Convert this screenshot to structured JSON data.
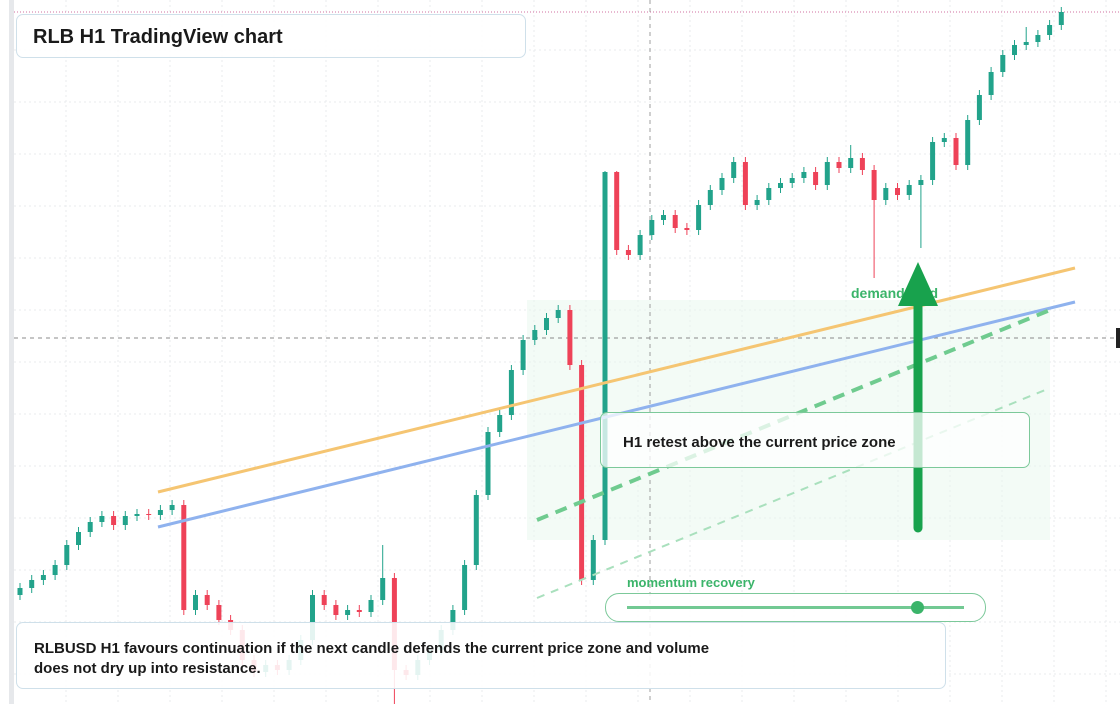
{
  "chart_data": {
    "type": "candlestick",
    "title": "RLB H1 TradingView chart",
    "annotations": [
      "demand hold",
      "H1 retest above the current price zone",
      "momentum recovery",
      "RLBUSD H1 favours continuation if the next candle defends the current price zone and volume does not dry up into resistance."
    ],
    "up_color": "#22a38b",
    "down_color": "#ee4258",
    "ylim": [
      0,
      70.4
    ],
    "candles": [
      [
        10.9,
        12.1,
        10.4,
        11.6
      ],
      [
        11.6,
        12.9,
        11.1,
        12.4
      ],
      [
        12.4,
        13.4,
        11.9,
        12.9
      ],
      [
        12.9,
        14.4,
        12.4,
        13.9
      ],
      [
        13.9,
        16.4,
        13.4,
        15.9
      ],
      [
        15.9,
        17.7,
        15.4,
        17.2
      ],
      [
        17.2,
        18.7,
        16.7,
        18.2
      ],
      [
        18.2,
        19.3,
        17.7,
        18.8
      ],
      [
        18.8,
        19.3,
        17.4,
        17.9
      ],
      [
        17.9,
        19.3,
        17.4,
        18.8
      ],
      [
        18.8,
        19.5,
        18.3,
        19
      ],
      [
        19,
        19.5,
        18.4,
        18.9
      ],
      [
        18.9,
        19.9,
        18.4,
        19.4
      ],
      [
        19.4,
        20.4,
        18.9,
        19.9
      ],
      [
        19.9,
        20.4,
        8.9,
        9.4
      ],
      [
        9.4,
        11.4,
        8.9,
        10.9
      ],
      [
        10.9,
        11.4,
        9.4,
        9.9
      ],
      [
        9.9,
        10.4,
        7.9,
        8.4
      ],
      [
        8.4,
        8.9,
        6.9,
        7.4
      ],
      [
        7.4,
        7.9,
        3.9,
        4.4
      ],
      [
        4.4,
        4.9,
        2.7,
        3.2
      ],
      [
        3.2,
        4.4,
        2.7,
        3.9
      ],
      [
        3.9,
        4.4,
        2.9,
        3.4
      ],
      [
        3.4,
        4.9,
        2.9,
        4.4
      ],
      [
        4.4,
        6.9,
        3.9,
        6.4
      ],
      [
        6.4,
        11.4,
        5.9,
        10.9
      ],
      [
        10.9,
        11.4,
        9.4,
        9.9
      ],
      [
        9.9,
        10.4,
        8.4,
        8.9
      ],
      [
        8.9,
        9.9,
        8.4,
        9.4
      ],
      [
        9.4,
        9.9,
        8.7,
        9.2
      ],
      [
        9.2,
        10.9,
        8.7,
        10.4
      ],
      [
        10.4,
        15.9,
        9.9,
        12.6
      ],
      [
        12.6,
        13.1,
        0,
        3.4
      ],
      [
        3.4,
        3.9,
        2.4,
        2.9
      ],
      [
        2.9,
        4.9,
        2.4,
        4.4
      ],
      [
        4.4,
        5.9,
        3.9,
        5.4
      ],
      [
        5.4,
        7.9,
        4.9,
        7.4
      ],
      [
        7.4,
        9.9,
        6.9,
        9.4
      ],
      [
        9.4,
        14.4,
        8.9,
        13.9
      ],
      [
        13.9,
        21.4,
        13.4,
        20.9
      ],
      [
        20.9,
        27.7,
        20.4,
        27.2
      ],
      [
        27.2,
        29.4,
        26.7,
        28.9
      ],
      [
        28.9,
        33.9,
        28.4,
        33.4
      ],
      [
        33.4,
        36.9,
        32.9,
        36.4
      ],
      [
        36.4,
        37.9,
        35.9,
        37.4
      ],
      [
        37.4,
        39.1,
        36.9,
        38.6
      ],
      [
        38.6,
        39.9,
        38.1,
        39.4
      ],
      [
        39.4,
        39.9,
        33.4,
        33.9
      ],
      [
        33.9,
        34.4,
        11.9,
        12.4
      ],
      [
        12.4,
        16.9,
        11.9,
        16.4
      ],
      [
        16.4,
        53.3,
        15.9,
        53.2
      ],
      [
        53.2,
        53.3,
        44.9,
        45.4
      ],
      [
        45.4,
        45.9,
        44.4,
        44.9
      ],
      [
        44.9,
        47.4,
        44.4,
        46.9
      ],
      [
        46.9,
        48.9,
        46.4,
        48.4
      ],
      [
        48.4,
        49.4,
        47.9,
        48.9
      ],
      [
        48.9,
        49.4,
        47.1,
        47.6
      ],
      [
        47.6,
        48.1,
        46.9,
        47.4
      ],
      [
        47.4,
        50.4,
        46.9,
        49.9
      ],
      [
        49.9,
        51.9,
        49.4,
        51.4
      ],
      [
        51.4,
        53.1,
        50.9,
        52.6
      ],
      [
        52.6,
        54.7,
        52.1,
        54.2
      ],
      [
        54.2,
        54.7,
        49.4,
        49.9
      ],
      [
        49.9,
        50.9,
        49.4,
        50.4
      ],
      [
        50.4,
        52.1,
        49.9,
        51.6
      ],
      [
        51.6,
        52.6,
        51.1,
        52.1
      ],
      [
        52.1,
        53.1,
        51.6,
        52.6
      ],
      [
        52.6,
        53.7,
        52.1,
        53.2
      ],
      [
        53.2,
        53.7,
        51.4,
        51.9
      ],
      [
        51.9,
        54.7,
        51.4,
        54.2
      ],
      [
        54.2,
        54.7,
        53.1,
        53.6
      ],
      [
        53.6,
        55.9,
        53.1,
        54.6
      ],
      [
        54.6,
        55.1,
        52.9,
        53.4
      ],
      [
        53.4,
        53.9,
        42.6,
        50.4
      ],
      [
        50.4,
        52.1,
        49.9,
        51.6
      ],
      [
        51.6,
        52.1,
        50.4,
        50.9
      ],
      [
        50.9,
        52.4,
        50.4,
        51.9
      ],
      [
        51.9,
        52.9,
        45.6,
        52.4
      ],
      [
        52.4,
        56.7,
        51.9,
        56.2
      ],
      [
        56.2,
        57.1,
        55.7,
        56.6
      ],
      [
        56.6,
        57.1,
        53.4,
        53.9
      ],
      [
        53.9,
        58.9,
        53.4,
        58.4
      ],
      [
        58.4,
        61.4,
        57.9,
        60.9
      ],
      [
        60.9,
        63.7,
        60.4,
        63.2
      ],
      [
        63.2,
        65.4,
        62.7,
        64.9
      ],
      [
        64.9,
        66.4,
        64.4,
        65.9
      ],
      [
        65.9,
        67.7,
        65.4,
        66.2
      ],
      [
        66.2,
        67.4,
        65.7,
        66.9
      ],
      [
        66.9,
        68.4,
        66.4,
        67.9
      ],
      [
        67.9,
        69.7,
        67.4,
        69.2
      ]
    ]
  }
}
